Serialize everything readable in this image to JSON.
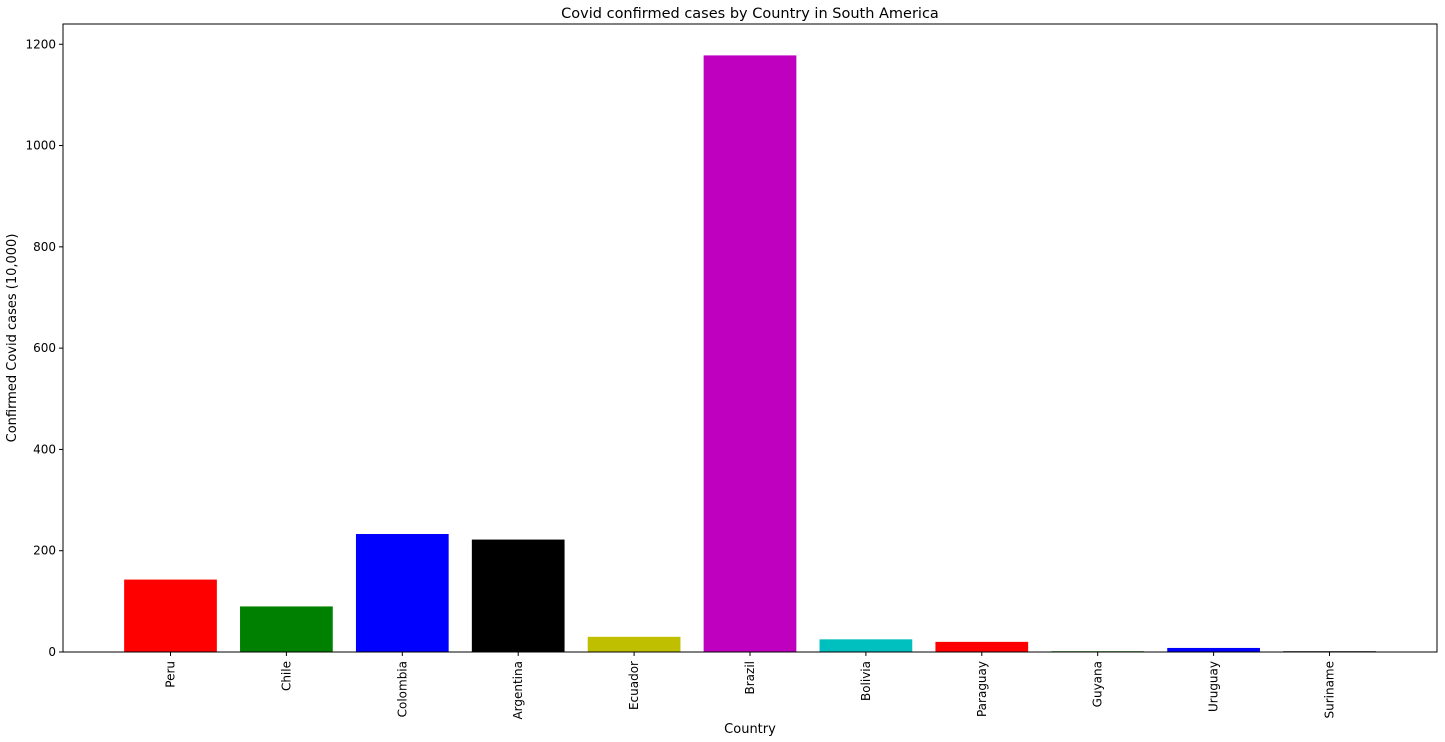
{
  "chart_data": {
    "type": "bar",
    "title": "Covid confirmed cases by Country in South America",
    "xlabel": "Country",
    "ylabel": "Confirmed Covid cases (10,000)",
    "ylim": [
      0,
      1240
    ],
    "yticks": [
      0,
      200,
      400,
      600,
      800,
      1000,
      1200
    ],
    "categories": [
      "Peru",
      "Chile",
      "Colombia",
      "Argentina",
      "Ecuador",
      "Brazil",
      "Bolivia",
      "Paraguay",
      "Guyana",
      "Uruguay",
      "Suriname"
    ],
    "values": [
      143,
      90,
      233,
      222,
      30,
      1178,
      25,
      20,
      1.5,
      8,
      1.5
    ],
    "colors": [
      "#ff0000",
      "#008000",
      "#0000ff",
      "#000000",
      "#bfbf00",
      "#bf00bf",
      "#00bfbf",
      "#ff0000",
      "#008000",
      "#0000ff",
      "#000000"
    ],
    "grid": false,
    "legend": "none",
    "xtick_rotation": "vertical"
  }
}
